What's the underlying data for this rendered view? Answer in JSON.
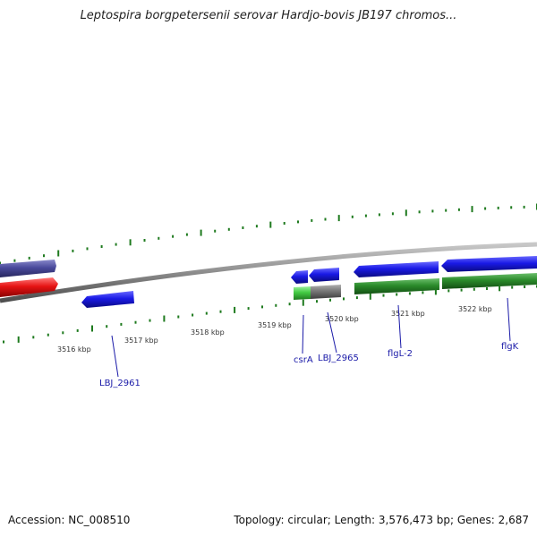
{
  "title": "Leptospira borgpetersenii serovar Hardjo-bovis JB197 chromos...",
  "accession_text": "Accession: NC_008510",
  "summary_text": "Topology: circular; Length: 3,576,473 bp; Genes: 2,687",
  "ticks": [
    "3516 kbp",
    "3517 kbp",
    "3518 kbp",
    "3519 kbp",
    "3520 kbp",
    "3521 kbp",
    "3522 kbp"
  ],
  "genes": [
    "LBJ_2961",
    "csrA",
    "LBJ_2965",
    "flgL-2",
    "flgK"
  ],
  "colors": {
    "backbone": "#8c8c8c",
    "gene_blue": "#1a1ae6",
    "gene_red": "#e61414",
    "gene_slate": "#4a4a9c",
    "feature_green": "#2a8a2a",
    "feature_lightgreen": "#44cc44",
    "feature_gray": "#777777",
    "ruler_green": "#1e7a1e",
    "label_blue": "#1a1aa8"
  }
}
